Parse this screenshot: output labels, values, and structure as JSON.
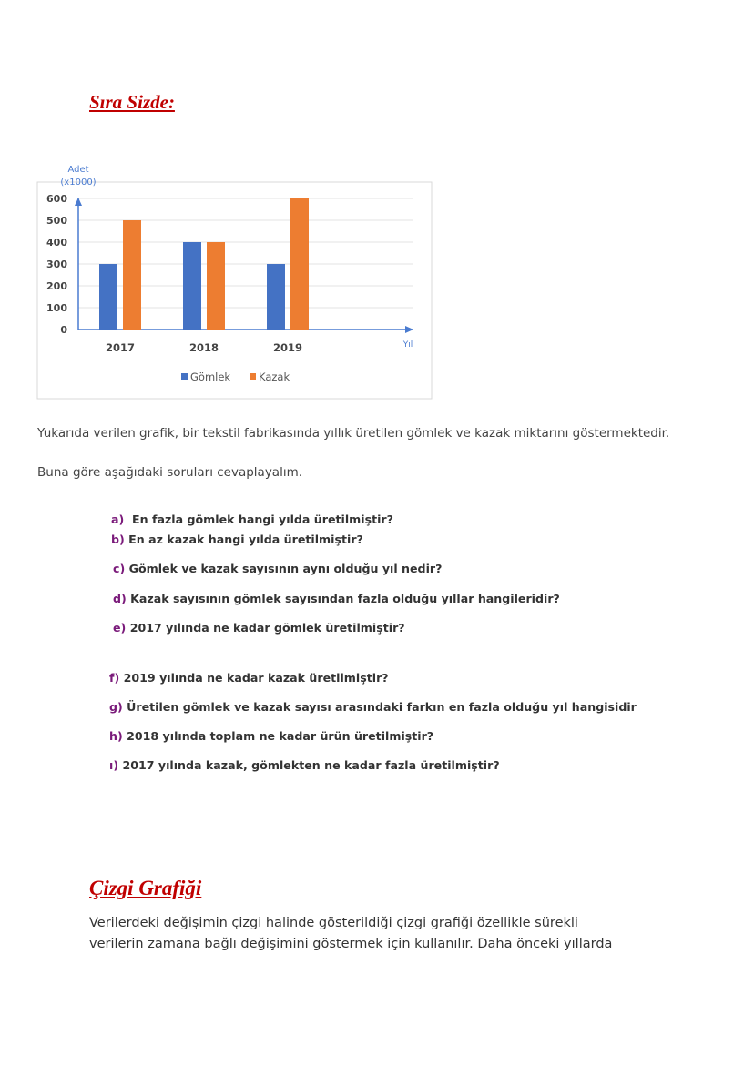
{
  "heading1": "Sıra Sizde:",
  "chart_data": {
    "type": "bar",
    "title": "",
    "ylabel": "Adet (x1000)",
    "ylabel_lines": [
      "Adet",
      "(x1000)"
    ],
    "xlabel": "Yıl",
    "categories": [
      "2017",
      "2018",
      "2019"
    ],
    "yticks": [
      "0",
      "100",
      "200",
      "300",
      "400",
      "500",
      "600"
    ],
    "ylim": [
      0,
      600
    ],
    "grid": true,
    "legend_placement": "bottom",
    "series": [
      {
        "name": "Gömlek",
        "values": [
          300,
          400,
          300
        ],
        "color": "#4472c4"
      },
      {
        "name": "Kazak",
        "values": [
          500,
          400,
          600
        ],
        "color": "#ed7d31"
      }
    ],
    "axis_color": "#4a7bd0"
  },
  "intro": [
    "Yukarıda verilen grafik, bir tekstil fabrikasında yıllık üretilen gömlek ve kazak miktarını göstermektedir.",
    "Buna göre aşağıdaki soruları cevaplayalım."
  ],
  "questions": [
    {
      "letter": "a)",
      "text": "  En fazla gömlek hangi yılda üretilmiştir?"
    },
    {
      "letter": "b)",
      "text": " En az kazak hangi yılda üretilmiştir?"
    },
    {
      "letter": "c)",
      "text": " Gömlek ve kazak sayısının aynı olduğu yıl nedir?"
    },
    {
      "letter": "d)",
      "text": " Kazak sayısının gömlek sayısından fazla olduğu yıllar hangileridir?"
    },
    {
      "letter": "e)",
      "text": " 2017 yılında ne kadar gömlek üretilmiştir?"
    },
    {
      "letter": "f)",
      "text": " 2019 yılında ne kadar kazak üretilmiştir?"
    },
    {
      "letter": "g)",
      "text": " Üretilen gömlek ve kazak sayısı arasındaki farkın en fazla olduğu yıl hangisidir"
    },
    {
      "letter": "h)",
      "text": " 2018 yılında toplam ne kadar ürün üretilmiştir?"
    },
    {
      "letter": "ı)",
      "text": " 2017 yılında kazak, gömlekten ne kadar fazla üretilmiştir?"
    }
  ],
  "heading2": "Çizgi Grafiği",
  "body2": [
    "Verilerdeki değişimin çizgi halinde gösterildiği çizgi grafiği özellikle sürekli",
    "verilerin zamana bağlı değişimini göstermek için kullanılır. Daha önceki yıllarda"
  ]
}
